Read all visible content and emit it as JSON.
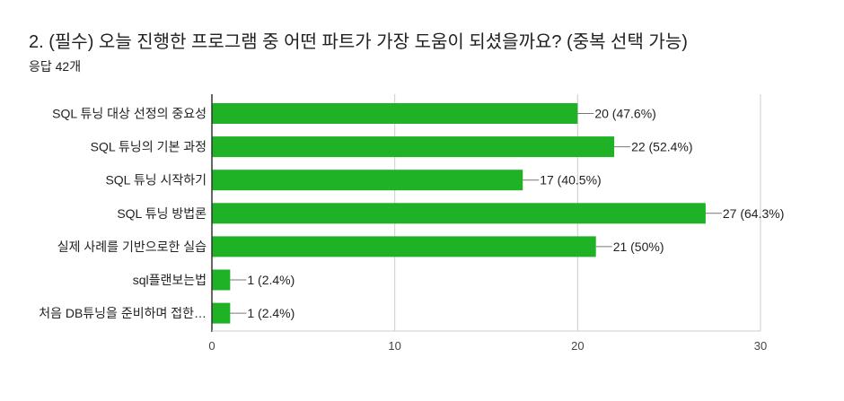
{
  "question": {
    "title": "2. (필수) 오늘 진행한 프로그램 중 어떤 파트가 가장 도움이 되셨을까요? (중복 선택 가능)",
    "responses": "응답 42개"
  },
  "chart_data": {
    "type": "bar",
    "orientation": "horizontal",
    "categories": [
      "SQL 튜닝 대상 선정의 중요성",
      "SQL 튜닝의 기본 과정",
      "SQL 튜닝 시작하기",
      "SQL 튜닝 방법론",
      "실제 사례를 기반으로한 실습",
      "sql플랜보는법",
      "처음 DB튜닝을 준비하며 접한…"
    ],
    "values": [
      20,
      22,
      17,
      27,
      21,
      1,
      1
    ],
    "value_labels": [
      "20 (47.6%)",
      "22 (52.4%)",
      "17 (40.5%)",
      "27 (64.3%)",
      "21 (50%)",
      "1 (2.4%)",
      "1 (2.4%)"
    ],
    "xlim": [
      0,
      30
    ],
    "xticks": [
      0,
      10,
      20,
      30
    ],
    "xtick_labels": [
      "0",
      "10",
      "20",
      "30"
    ],
    "grid": true,
    "bar_color": "#1fb226",
    "grid_color": "#cccccc",
    "axis_color": "#333333"
  }
}
